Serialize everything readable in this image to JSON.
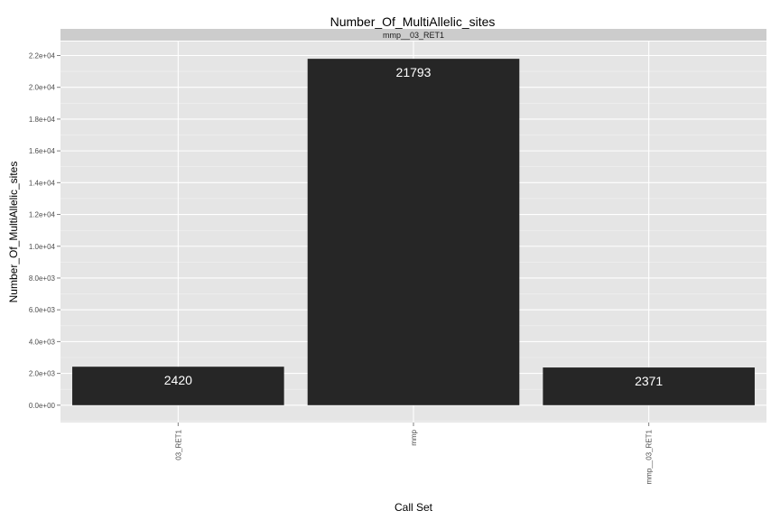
{
  "chart_data": {
    "type": "bar",
    "title": "Number_Of_MultiAllelic_sites",
    "facet_label": "mmp__03_RET1",
    "xlabel": "Call Set",
    "ylabel": "Number_Of_MultiAllelic_sites",
    "categories": [
      "03_RET1",
      "mmp",
      "mmp__03_RET1"
    ],
    "values": [
      2420,
      21793,
      2371
    ],
    "data_labels": [
      "2420",
      "21793",
      "2371"
    ],
    "ylim": [
      -1090,
      22880
    ],
    "yticks": [
      0,
      2000,
      4000,
      6000,
      8000,
      10000,
      12000,
      14000,
      16000,
      18000,
      20000,
      22000
    ],
    "ytick_labels": [
      "0.0e+00",
      "2.0e+03",
      "4.0e+03",
      "6.0e+03",
      "8.0e+03",
      "1.0e+04",
      "1.2e+04",
      "1.4e+04",
      "1.6e+04",
      "1.8e+04",
      "2.0e+04",
      "2.2e+04"
    ],
    "grid": true,
    "legend": "none",
    "colors": {
      "panel": "#e5e5e5",
      "strip": "#cccccc",
      "grid_major": "#ffffff",
      "grid_minor": "#f2f2f2",
      "bar": "#262626",
      "bar_label": "#ffffff"
    }
  }
}
